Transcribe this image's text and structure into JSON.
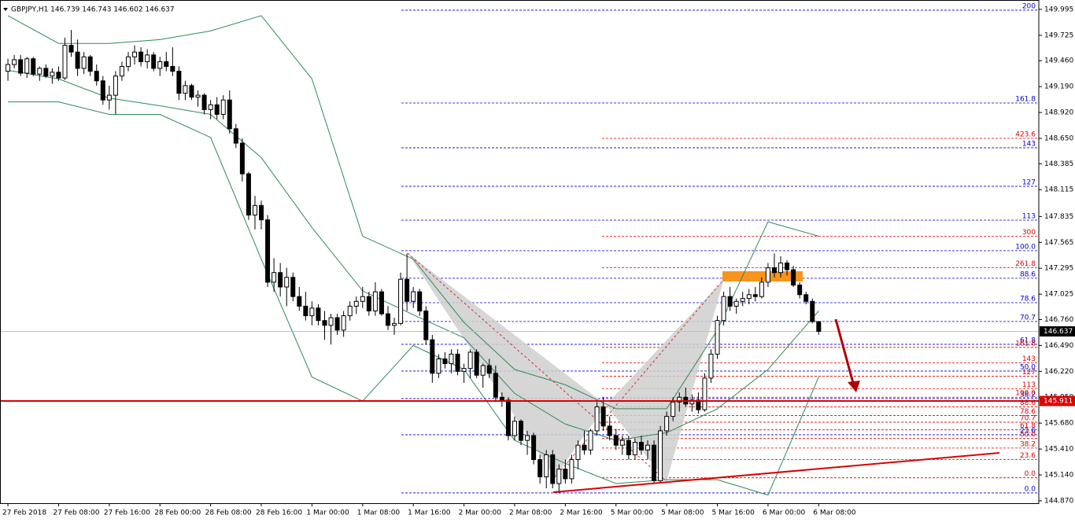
{
  "chart_data": {
    "type": "candlestick",
    "title": "GBPJPY,H1  146.739 146.743 146.602 146.637",
    "candles": [
      [
        149.35,
        149.48,
        149.25,
        149.42
      ],
      [
        149.42,
        149.52,
        149.38,
        149.47
      ],
      [
        149.47,
        149.52,
        149.3,
        149.33
      ],
      [
        149.33,
        149.5,
        149.28,
        149.48
      ],
      [
        149.48,
        149.5,
        149.3,
        149.32
      ],
      [
        149.32,
        149.4,
        149.25,
        149.38
      ],
      [
        149.38,
        149.42,
        149.28,
        149.3
      ],
      [
        149.3,
        149.38,
        149.22,
        149.34
      ],
      [
        149.34,
        149.4,
        149.25,
        149.28
      ],
      [
        149.28,
        149.7,
        149.26,
        149.62
      ],
      [
        149.62,
        149.78,
        149.5,
        149.55
      ],
      [
        149.55,
        149.68,
        149.3,
        149.38
      ],
      [
        149.38,
        149.55,
        149.32,
        149.5
      ],
      [
        149.5,
        149.52,
        149.3,
        149.35
      ],
      [
        149.35,
        149.42,
        149.2,
        149.25
      ],
      [
        149.25,
        149.3,
        149.0,
        149.05
      ],
      [
        149.05,
        149.2,
        148.95,
        149.1
      ],
      [
        149.1,
        149.35,
        148.9,
        149.3
      ],
      [
        149.3,
        149.45,
        149.25,
        149.4
      ],
      [
        149.4,
        149.55,
        149.35,
        149.5
      ],
      [
        149.5,
        149.62,
        149.42,
        149.55
      ],
      [
        149.55,
        149.6,
        149.4,
        149.45
      ],
      [
        149.45,
        149.58,
        149.38,
        149.52
      ],
      [
        149.52,
        149.55,
        149.35,
        149.38
      ],
      [
        149.38,
        149.5,
        149.3,
        149.45
      ],
      [
        149.45,
        149.55,
        149.35,
        149.4
      ],
      [
        149.4,
        149.6,
        149.3,
        149.35
      ],
      [
        149.35,
        149.4,
        149.05,
        149.12
      ],
      [
        149.12,
        149.25,
        149.05,
        149.2
      ],
      [
        149.2,
        149.22,
        149.05,
        149.08
      ],
      [
        149.08,
        149.15,
        148.98,
        149.1
      ],
      [
        149.1,
        149.12,
        148.9,
        148.95
      ],
      [
        148.95,
        149.05,
        148.85,
        149.0
      ],
      [
        149.0,
        149.08,
        148.85,
        148.9
      ],
      [
        148.9,
        149.1,
        148.85,
        149.05
      ],
      [
        149.05,
        149.15,
        148.7,
        148.75
      ],
      [
        148.75,
        148.8,
        148.55,
        148.6
      ],
      [
        148.6,
        148.65,
        148.2,
        148.28
      ],
      [
        148.28,
        148.3,
        147.8,
        147.85
      ],
      [
        147.85,
        148.05,
        147.7,
        147.95
      ],
      [
        147.95,
        148.0,
        147.7,
        147.8
      ],
      [
        147.8,
        147.85,
        147.1,
        147.15
      ],
      [
        147.15,
        147.4,
        147.05,
        147.25
      ],
      [
        147.25,
        147.35,
        147.0,
        147.1
      ],
      [
        147.1,
        147.3,
        146.9,
        147.2
      ],
      [
        147.2,
        147.25,
        146.95,
        147.0
      ],
      [
        147.0,
        147.1,
        146.85,
        146.9
      ],
      [
        146.9,
        147.05,
        146.75,
        146.8
      ],
      [
        146.8,
        146.95,
        146.7,
        146.88
      ],
      [
        146.88,
        146.92,
        146.7,
        146.75
      ],
      [
        146.75,
        146.85,
        146.55,
        146.7
      ],
      [
        146.7,
        146.82,
        146.5,
        146.78
      ],
      [
        146.78,
        146.82,
        146.6,
        146.65
      ],
      [
        146.65,
        146.85,
        146.58,
        146.8
      ],
      [
        146.8,
        146.95,
        146.75,
        146.9
      ],
      [
        146.9,
        147.0,
        146.82,
        146.95
      ],
      [
        146.95,
        147.1,
        146.88,
        147.0
      ],
      [
        147.0,
        147.05,
        146.8,
        146.85
      ],
      [
        146.85,
        147.15,
        146.8,
        147.05
      ],
      [
        147.05,
        147.08,
        146.8,
        146.82
      ],
      [
        146.82,
        146.9,
        146.65,
        146.7
      ],
      [
        146.7,
        146.78,
        146.6,
        146.72
      ],
      [
        146.72,
        147.25,
        146.7,
        147.18
      ],
      [
        147.18,
        147.45,
        146.85,
        146.95
      ],
      [
        146.95,
        147.1,
        146.88,
        147.05
      ],
      [
        147.05,
        147.08,
        146.8,
        146.85
      ],
      [
        146.85,
        146.9,
        146.5,
        146.55
      ],
      [
        146.55,
        146.6,
        146.1,
        146.2
      ],
      [
        146.2,
        146.4,
        146.15,
        146.35
      ],
      [
        146.35,
        146.42,
        146.25,
        146.3
      ],
      [
        146.3,
        146.45,
        146.2,
        146.4
      ],
      [
        146.4,
        146.45,
        146.18,
        146.22
      ],
      [
        146.22,
        146.3,
        146.1,
        146.25
      ],
      [
        146.25,
        146.45,
        146.15,
        146.42
      ],
      [
        146.42,
        146.45,
        146.15,
        146.18
      ],
      [
        146.18,
        146.3,
        146.05,
        146.28
      ],
      [
        146.28,
        146.35,
        146.15,
        146.2
      ],
      [
        146.2,
        146.28,
        145.9,
        145.95
      ],
      [
        145.95,
        146.0,
        145.85,
        145.92
      ],
      [
        145.92,
        145.95,
        145.5,
        145.55
      ],
      [
        145.55,
        145.75,
        145.5,
        145.7
      ],
      [
        145.7,
        145.72,
        145.45,
        145.5
      ],
      [
        145.5,
        145.6,
        145.35,
        145.55
      ],
      [
        145.55,
        145.58,
        145.25,
        145.3
      ],
      [
        145.3,
        145.35,
        145.05,
        145.12
      ],
      [
        145.12,
        145.4,
        145.0,
        145.35
      ],
      [
        145.35,
        145.4,
        145.0,
        145.05
      ],
      [
        145.05,
        145.25,
        144.95,
        145.2
      ],
      [
        145.2,
        145.3,
        145.05,
        145.1
      ],
      [
        145.1,
        145.35,
        145.05,
        145.3
      ],
      [
        145.3,
        145.5,
        145.2,
        145.45
      ],
      [
        145.45,
        145.6,
        145.35,
        145.4
      ],
      [
        145.4,
        145.62,
        145.35,
        145.6
      ],
      [
        145.6,
        145.9,
        145.55,
        145.85
      ],
      [
        145.85,
        145.95,
        145.6,
        145.65
      ],
      [
        145.65,
        145.75,
        145.5,
        145.55
      ],
      [
        145.55,
        145.62,
        145.4,
        145.45
      ],
      [
        145.45,
        145.55,
        145.35,
        145.5
      ],
      [
        145.5,
        145.55,
        145.3,
        145.35
      ],
      [
        145.35,
        145.52,
        145.3,
        145.48
      ],
      [
        145.48,
        145.55,
        145.35,
        145.4
      ],
      [
        145.4,
        145.5,
        145.3,
        145.45
      ],
      [
        145.45,
        145.5,
        145.05,
        145.08
      ],
      [
        145.08,
        145.65,
        145.05,
        145.6
      ],
      [
        145.6,
        145.8,
        145.55,
        145.75
      ],
      [
        145.75,
        145.95,
        145.7,
        145.9
      ],
      [
        145.9,
        146.0,
        145.8,
        145.95
      ],
      [
        145.95,
        146.05,
        145.85,
        145.88
      ],
      [
        145.88,
        145.98,
        145.8,
        145.92
      ],
      [
        145.92,
        146.0,
        145.78,
        145.82
      ],
      [
        145.82,
        146.2,
        145.8,
        146.15
      ],
      [
        146.15,
        146.45,
        146.1,
        146.4
      ],
      [
        146.4,
        146.8,
        146.35,
        146.75
      ],
      [
        146.75,
        147.05,
        146.7,
        147.0
      ],
      [
        147.0,
        147.1,
        146.85,
        146.9
      ],
      [
        146.9,
        146.98,
        146.82,
        146.95
      ],
      [
        146.95,
        147.05,
        146.9,
        146.98
      ],
      [
        146.98,
        147.08,
        146.92,
        147.02
      ],
      [
        147.02,
        147.1,
        146.95,
        147.0
      ],
      [
        147.0,
        147.2,
        146.98,
        147.15
      ],
      [
        147.15,
        147.35,
        147.1,
        147.3
      ],
      [
        147.3,
        147.45,
        147.2,
        147.25
      ],
      [
        147.25,
        147.42,
        147.2,
        147.35
      ],
      [
        147.35,
        147.38,
        147.22,
        147.28
      ],
      [
        147.28,
        147.32,
        147.1,
        147.12
      ],
      [
        147.12,
        147.15,
        146.98,
        147.02
      ],
      [
        147.02,
        147.05,
        146.92,
        146.95
      ],
      [
        146.95,
        146.98,
        146.72,
        146.739
      ],
      [
        146.739,
        146.743,
        146.602,
        146.637
      ]
    ],
    "bull_color": "#ffffff",
    "bear_color": "#000000",
    "bands_x": [
      0,
      8,
      16,
      24,
      32,
      40,
      48,
      56,
      64,
      72,
      80,
      88,
      96,
      104,
      112,
      120,
      128
    ],
    "bands": [
      [
        149.93,
        149.64,
        149.64,
        149.68,
        149.77,
        149.93,
        149.27,
        147.63,
        147.39,
        146.73,
        146.24,
        146.08,
        145.83,
        145.83,
        146.65,
        147.78,
        147.63
      ],
      [
        149.36,
        149.27,
        149.07,
        148.99,
        148.9,
        148.45,
        147.72,
        147.06,
        146.81,
        146.57,
        145.99,
        145.67,
        145.5,
        145.58,
        145.83,
        146.24,
        146.85
      ],
      [
        149.03,
        149.03,
        148.9,
        148.9,
        148.66,
        147.39,
        146.16,
        145.91,
        146.49,
        146.24,
        145.5,
        145.26,
        145.05,
        145.09,
        145.09,
        144.93,
        146.16
      ]
    ],
    "bands_color": "#2e8b57",
    "fib_blue": [
      {
        "label": "200",
        "price": 149.987
      },
      {
        "label": "161.8",
        "price": 149.019
      },
      {
        "label": "143",
        "price": 148.552
      },
      {
        "label": "127",
        "price": 148.15
      },
      {
        "label": "113",
        "price": 147.797
      },
      {
        "label": "100.0",
        "price": 147.478
      },
      {
        "label": "88.6",
        "price": 147.191
      },
      {
        "label": "78.6",
        "price": 146.936
      },
      {
        "label": "70.7",
        "price": 146.74
      },
      {
        "label": "61.8",
        "price": 146.502
      },
      {
        "label": "50.0",
        "price": 146.223
      },
      {
        "label": "38.2",
        "price": 145.936
      },
      {
        "label": "23.6",
        "price": 145.559
      },
      {
        "label": "0.0",
        "price": 144.952
      }
    ],
    "fib_blue_color": "#0000cc",
    "fib_red": [
      {
        "label": "423.6",
        "price": 148.65
      },
      {
        "label": "300",
        "price": 147.63
      },
      {
        "label": "261.8",
        "price": 147.3
      },
      {
        "label": "161.8",
        "price": 146.47
      },
      {
        "label": "143",
        "price": 146.31
      },
      {
        "label": "127",
        "price": 146.17
      },
      {
        "label": "113",
        "price": 146.04
      },
      {
        "label": "100.0",
        "price": 145.95
      },
      {
        "label": "88.6",
        "price": 145.85
      },
      {
        "label": "78.6",
        "price": 145.76
      },
      {
        "label": "70.7",
        "price": 145.69
      },
      {
        "label": "61.8",
        "price": 145.61
      },
      {
        "label": "50.0",
        "price": 145.52
      },
      {
        "label": "38.2",
        "price": 145.42
      },
      {
        "label": "23.6",
        "price": 145.3
      },
      {
        "label": "0.0",
        "price": 145.11
      }
    ],
    "fib_red_color": "#dd0000",
    "price_line": 145.911,
    "current_price": 146.637,
    "xlim": [
      -1.25,
      162.75
    ],
    "ylim": [
      144.845,
      150.093
    ],
    "yticks": [
      149.995,
      149.725,
      {
        "value": 149.46,
        "label": "149.460"
      },
      {
        "value": 149.19,
        "label": "149.190"
      },
      {
        "value": 148.92,
        "label": "148.920"
      },
      {
        "value": 148.65,
        "label": "148.650"
      },
      148.385,
      148.115,
      147.835,
      147.565,
      147.295,
      147.025,
      {
        "value": 146.76,
        "label": "146.760"
      },
      {
        "value": 146.49,
        "label": "146.490"
      },
      {
        "value": 146.22,
        "label": "146.220"
      },
      {
        "value": 145.95,
        "label": "145.950"
      },
      {
        "value": 145.68,
        "label": "145.680"
      },
      {
        "value": 145.41,
        "label": "145.410"
      },
      {
        "value": 145.14,
        "label": "145.140"
      },
      {
        "value": 144.87,
        "label": "144.870"
      }
    ],
    "xticks": [
      {
        "value": 0,
        "label": "27 Feb 2018"
      },
      {
        "value": 8,
        "label": "27 Feb 08:00"
      },
      {
        "value": 16,
        "label": "27 Feb 16:00"
      },
      {
        "value": 24,
        "label": "28 Feb 00:00"
      },
      {
        "value": 32,
        "label": "28 Feb 08:00"
      },
      {
        "value": 40,
        "label": "28 Feb 16:00"
      },
      {
        "value": 48,
        "label": "1 Mar 00:00"
      },
      {
        "value": 56,
        "label": "1 Mar 08:00"
      },
      {
        "value": 64,
        "label": "1 Mar 16:00"
      },
      {
        "value": 72,
        "label": "2 Mar 00:00"
      },
      {
        "value": 80,
        "label": "2 Mar 08:00"
      },
      {
        "value": 88,
        "label": "2 Mar 16:00"
      },
      {
        "value": 96,
        "label": "5 Mar 00:00"
      },
      {
        "value": 104,
        "label": "5 Mar 08:00"
      },
      {
        "value": 112,
        "label": "5 Mar 16:00"
      },
      {
        "value": 120,
        "label": "6 Mar 00:00"
      },
      {
        "value": 128,
        "label": "6 Mar 08:00"
      }
    ]
  }
}
